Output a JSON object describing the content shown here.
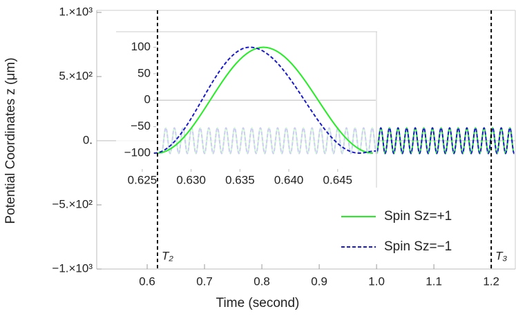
{
  "chart_data": {
    "type": "line",
    "xlabel": "Time (second)",
    "ylabel": "Potential Coordinates z (μm)",
    "xlim": [
      0.512,
      1.242
    ],
    "ylim": [
      -1000,
      1000
    ],
    "xticks": [
      0.6,
      0.7,
      0.8,
      0.9,
      {
        "value": 1,
        "label": "1.0"
      },
      1.1,
      1.2
    ],
    "yticks": [
      {
        "value": -1000,
        "label": "−1.×10³"
      },
      {
        "value": -500,
        "label": "−5.×10²"
      },
      {
        "value": 0,
        "label": "0."
      },
      {
        "value": 500,
        "label": "5.×10²"
      },
      {
        "value": 1000,
        "label": "1.×10³"
      }
    ],
    "legend": "lower right",
    "vlines": [
      {
        "x": 0.618,
        "label": "T₂"
      },
      {
        "x": 1.2,
        "label": "T₃"
      }
    ],
    "x": [
      0.625,
      0.6325,
      0.64,
      0.6475,
      0.655,
      0.6625,
      0.67,
      0.6775,
      0.685,
      0.6925,
      0.7,
      0.7075,
      0.715,
      0.7225,
      0.73,
      0.7375,
      0.745,
      0.7525,
      0.76,
      0.7675,
      0.775,
      0.7825,
      0.79,
      0.7975,
      0.805,
      0.8125,
      0.82,
      0.8275,
      0.835,
      0.8425,
      0.85,
      0.8575,
      0.865,
      0.8725,
      0.88,
      0.8875,
      0.895,
      0.9025,
      0.91,
      0.9175,
      0.925,
      0.9325,
      0.94,
      0.9475,
      0.955,
      0.9625,
      0.97,
      0.9775,
      0.985,
      0.9925,
      1.0,
      1.0075,
      1.015,
      1.0225,
      1.03,
      1.0375,
      1.045,
      1.0525,
      1.06,
      1.0675,
      1.075,
      1.0825,
      1.09,
      1.0975,
      1.105,
      1.1125,
      1.12,
      1.1275,
      1.135,
      1.1425,
      1.15,
      1.1575,
      1.165,
      1.1725,
      1.18,
      1.1875,
      1.195,
      1.2025,
      1.21,
      1.2175,
      1.225,
      1.2325,
      1.24
    ],
    "series": [
      {
        "name": "Spin Sz=+1",
        "color": "#22ee22",
        "dash": false,
        "values": [
          -100,
          100,
          -100,
          100,
          -100,
          100,
          -100,
          100,
          -100,
          100,
          -100,
          100,
          -100,
          100,
          -100,
          100,
          -100,
          100,
          -100,
          100,
          -100,
          100,
          -100,
          100,
          -100,
          100,
          -100,
          100,
          -100,
          100,
          -100,
          100,
          -100,
          100,
          -100,
          100,
          -100,
          100,
          -100,
          100,
          -100,
          100,
          -100,
          100,
          -100,
          100,
          -100,
          100,
          -100,
          100,
          -100,
          100,
          -100,
          100,
          -100,
          100,
          -100,
          100,
          -100,
          100,
          -100,
          100,
          -100,
          100,
          -100,
          100,
          -100,
          100,
          -100,
          100,
          -100,
          100,
          -100,
          100,
          -100,
          100,
          -100,
          100,
          -100,
          100,
          -100,
          100,
          -100
        ]
      },
      {
        "name": "Spin Sz=−1",
        "color": "#1a1acc",
        "dash": true,
        "values": [
          -100,
          100,
          -100,
          100,
          -100,
          100,
          -100,
          100,
          -100,
          100,
          -100,
          100,
          -100,
          100,
          -100,
          100,
          -100,
          100,
          -100,
          100,
          -100,
          100,
          -100,
          100,
          -100,
          100,
          -100,
          100,
          -100,
          100,
          -100,
          100,
          -100,
          100,
          -100,
          100,
          -100,
          100,
          -100,
          100,
          -100,
          100,
          -100,
          100,
          -100,
          100,
          -100,
          100,
          -100,
          100,
          -100,
          100,
          -100,
          100,
          -100,
          100,
          -100,
          100,
          -100,
          100,
          -100,
          100,
          -100,
          100,
          -100,
          100,
          -100,
          100,
          -100,
          100,
          -100,
          100,
          -100,
          100,
          -100,
          100,
          -100,
          100,
          -100,
          100,
          -100,
          100,
          -100
        ]
      }
    ],
    "inset": {
      "xlim": [
        0.62656,
        0.6489
      ],
      "ylim": [
        -130,
        128
      ],
      "xticks": [
        0.625,
        {
          "value": 0.63,
          "label": "0.630"
        },
        0.635,
        {
          "value": 0.64,
          "label": "0.640"
        },
        0.645
      ],
      "yticks": [
        {
          "value": -100,
          "label": "−100"
        },
        {
          "value": -50,
          "label": "−50"
        },
        0,
        50,
        100
      ],
      "series": [
        {
          "x": [
            0.6265,
            0.6374,
            0.6486
          ],
          "values": [
            -100,
            100,
            -100
          ],
          "color": "#22ee22",
          "dash": false
        },
        {
          "x": [
            0.6262,
            0.636,
            0.6472,
            0.6489
          ],
          "values": [
            -100,
            100,
            -100,
            -96
          ],
          "color": "#1a1acc",
          "dash": true
        }
      ]
    }
  }
}
